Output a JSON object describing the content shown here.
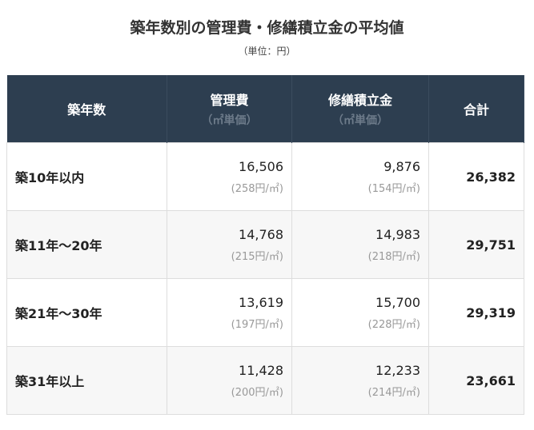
{
  "title": "築年数別の管理費・修繕積立金の平均値",
  "unit": "（単位：円）",
  "header": {
    "age": "築年数",
    "mgmt": "管理費",
    "mgmt_sub": "（㎡単価）",
    "repair": "修繕積立金",
    "repair_sub": "（㎡単価）",
    "total": "合計"
  },
  "rows": [
    {
      "age": "築10年以内",
      "mgmt": "16,506",
      "mgmt_unit": "(258円/㎡)",
      "repair": "9,876",
      "repair_unit": "(154円/㎡)",
      "total": "26,382"
    },
    {
      "age": "築11年～20年",
      "mgmt": "14,768",
      "mgmt_unit": "(215円/㎡)",
      "repair": "14,983",
      "repair_unit": "(218円/㎡)",
      "total": "29,751"
    },
    {
      "age": "築21年～30年",
      "mgmt": "13,619",
      "mgmt_unit": "(197円/㎡)",
      "repair": "15,700",
      "repair_unit": "(228円/㎡)",
      "total": "29,319"
    },
    {
      "age": "築31年以上",
      "mgmt": "11,428",
      "mgmt_unit": "(200円/㎡)",
      "repair": "12,233",
      "repair_unit": "(214円/㎡)",
      "total": "23,661"
    }
  ],
  "colors": {
    "header_bg": "#2d3e50"
  }
}
